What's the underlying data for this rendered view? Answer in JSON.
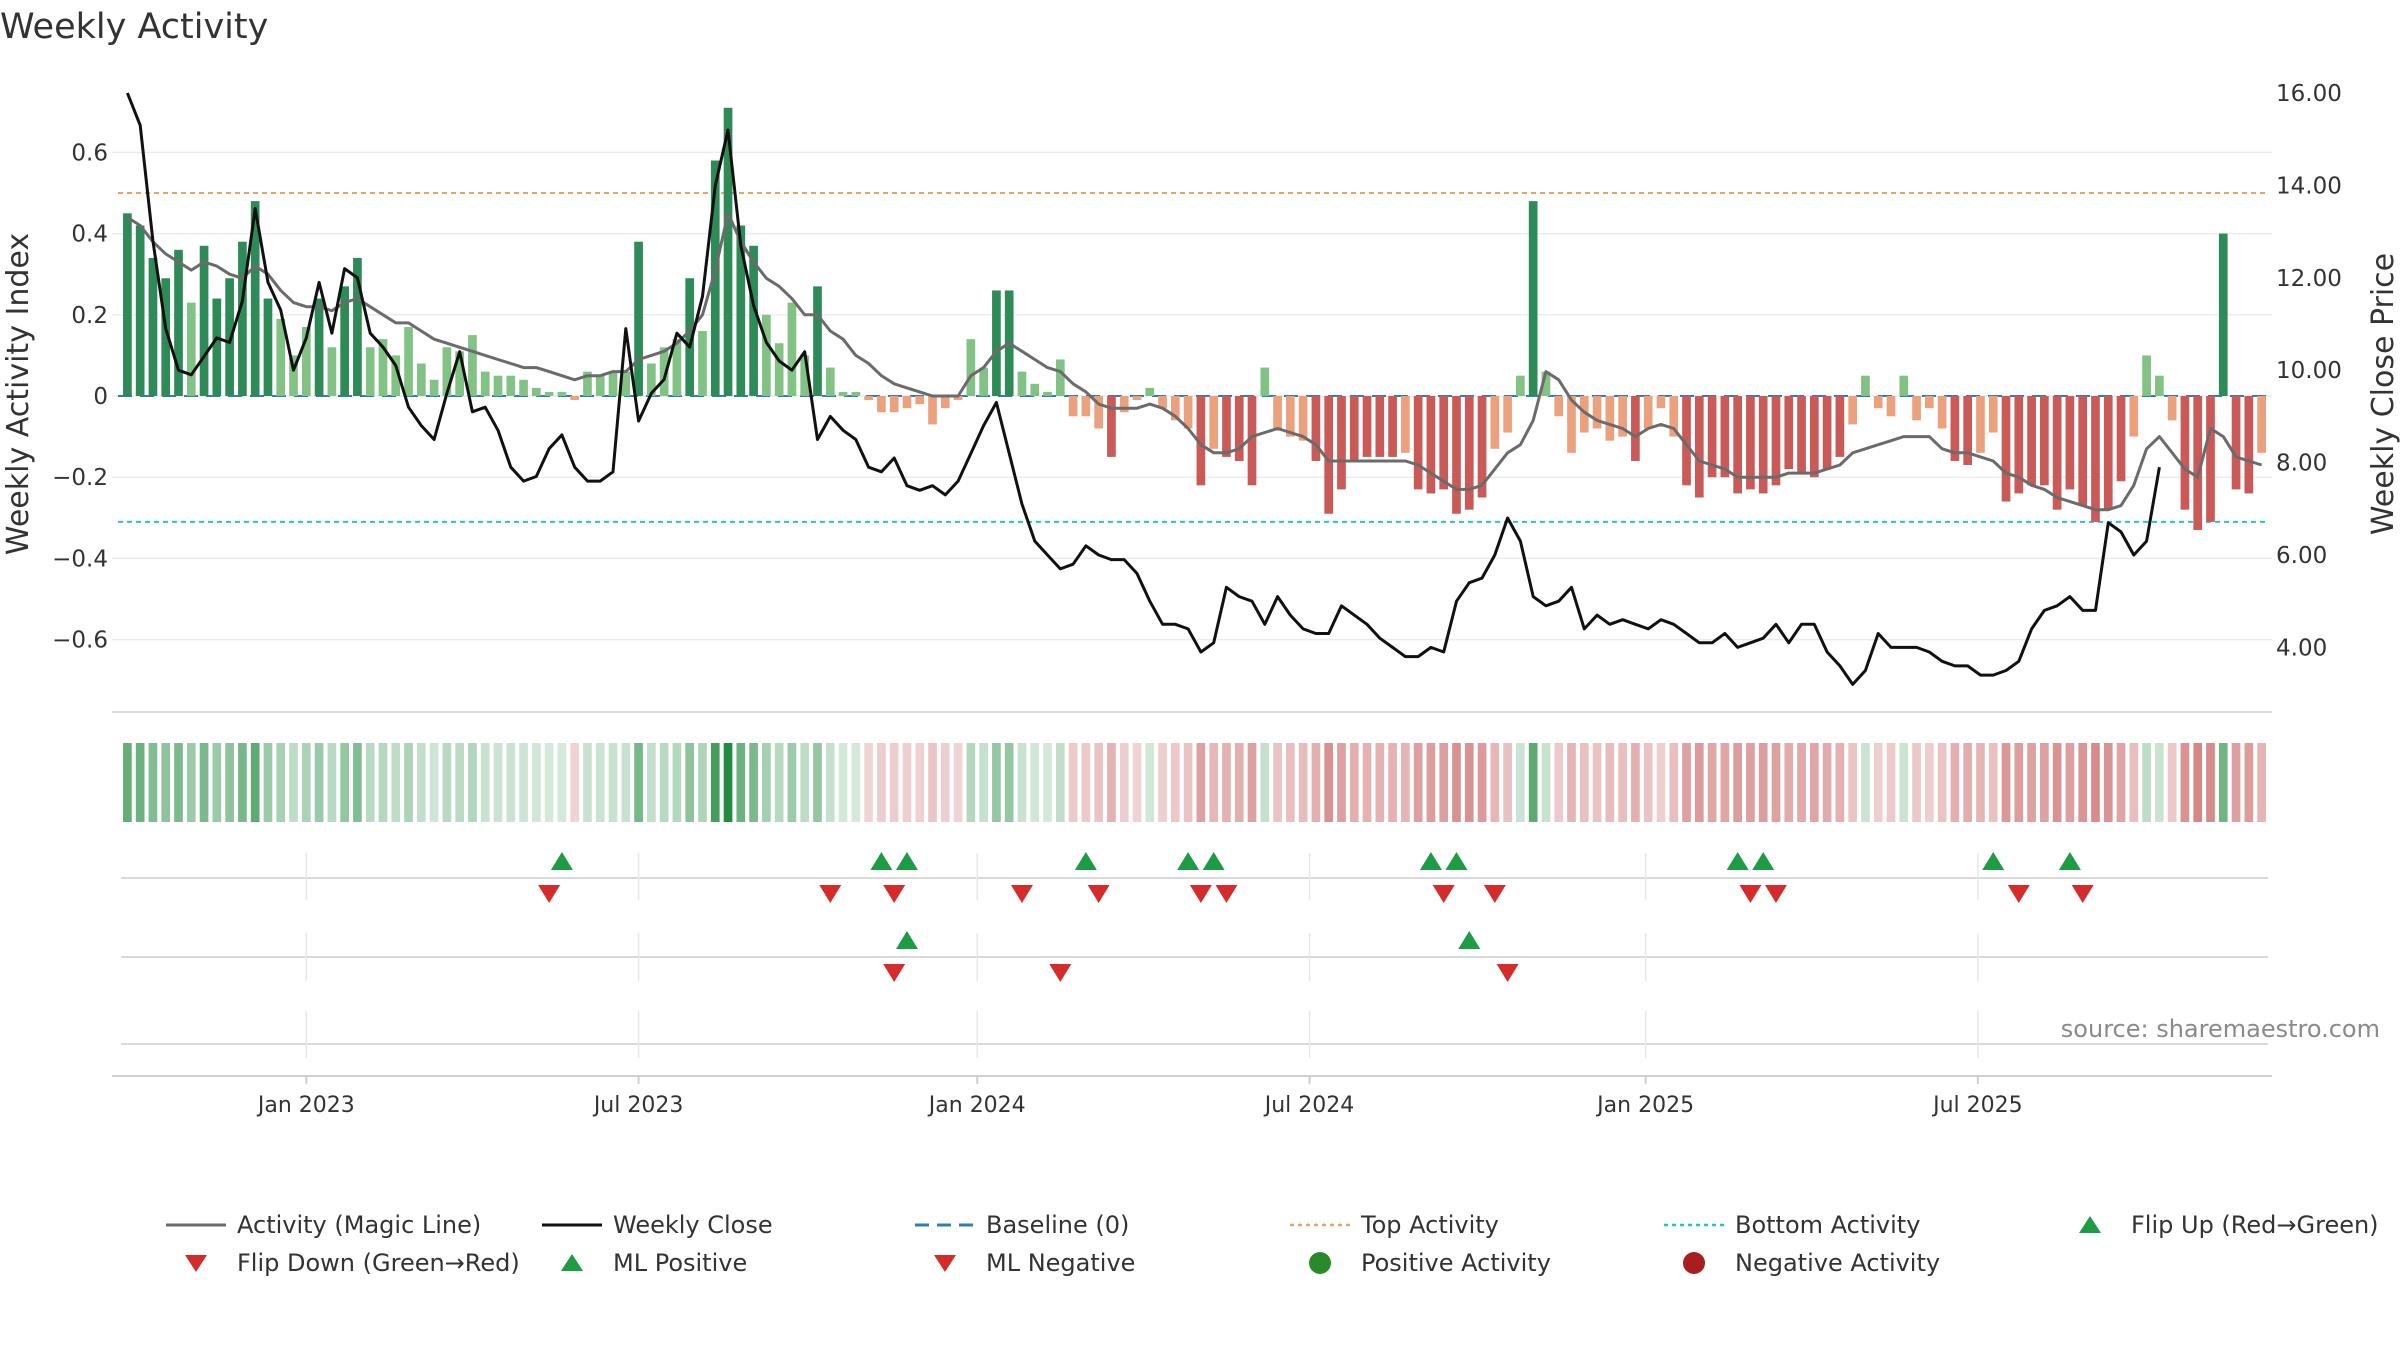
{
  "chart_data": {
    "type": "bar",
    "title": "Weekly Activity",
    "ylabel": "Weekly Activity Index",
    "y2label": "Weekly Close Price",
    "source": "source: sharemaestro.com",
    "ylim": [
      -0.78,
      0.72
    ],
    "y2lim": [
      2.6,
      16.6
    ],
    "y_ticks": [
      {
        "v": 0.6,
        "label": "0.6"
      },
      {
        "v": 0.4,
        "label": "0.4"
      },
      {
        "v": 0.2,
        "label": "0.2"
      },
      {
        "v": 0,
        "label": "0"
      },
      {
        "v": -0.2,
        "label": "−0.2"
      },
      {
        "v": -0.4,
        "label": "−0.4"
      },
      {
        "v": -0.6,
        "label": "−0.6"
      }
    ],
    "y2_ticks": [
      {
        "v": 16,
        "label": "16.00"
      },
      {
        "v": 14,
        "label": "14.00"
      },
      {
        "v": 12,
        "label": "12.00"
      },
      {
        "v": 10,
        "label": "10.00"
      },
      {
        "v": 8,
        "label": "8.00"
      },
      {
        "v": 6,
        "label": "6.00"
      },
      {
        "v": 4,
        "label": "4.00"
      }
    ],
    "x_ticks": [
      {
        "week": 14.5,
        "label": "Jan 2023"
      },
      {
        "week": 40.5,
        "label": "Jul 2023"
      },
      {
        "week": 67,
        "label": "Jan 2024"
      },
      {
        "week": 93,
        "label": "Jul 2024"
      },
      {
        "week": 119.3,
        "label": "Jan 2025"
      },
      {
        "week": 145.3,
        "label": "Jul 2025"
      }
    ],
    "top_activity": 0.5,
    "bottom_activity": -0.31,
    "baseline": 0,
    "activity": [
      0.45,
      0.42,
      0.34,
      0.29,
      0.36,
      0.23,
      0.37,
      0.24,
      0.29,
      0.38,
      0.48,
      0.24,
      0.19,
      0.1,
      0.17,
      0.24,
      0.12,
      0.27,
      0.34,
      0.12,
      0.14,
      0.1,
      0.17,
      0.08,
      0.04,
      0.12,
      0.11,
      0.15,
      0.06,
      0.05,
      0.05,
      0.04,
      0.02,
      0.01,
      0.01,
      -0.01,
      0.06,
      0.05,
      0.06,
      0.06,
      0.38,
      0.08,
      0.12,
      0.14,
      0.29,
      0.16,
      0.58,
      0.71,
      0.42,
      0.37,
      0.2,
      0.13,
      0.23,
      0.1,
      0.27,
      0.07,
      0.01,
      0.01,
      -0.01,
      -0.04,
      -0.04,
      -0.03,
      -0.02,
      -0.07,
      -0.03,
      -0.01,
      0.14,
      0.07,
      0.26,
      0.26,
      0.06,
      0.03,
      0.01,
      0.09,
      -0.05,
      -0.05,
      -0.08,
      -0.15,
      -0.04,
      -0.01,
      0.02,
      -0.03,
      -0.06,
      -0.08,
      -0.22,
      -0.13,
      -0.15,
      -0.16,
      -0.22,
      0.07,
      -0.08,
      -0.1,
      -0.11,
      -0.16,
      -0.29,
      -0.23,
      -0.16,
      -0.15,
      -0.15,
      -0.15,
      -0.14,
      -0.23,
      -0.24,
      -0.23,
      -0.29,
      -0.28,
      -0.25,
      -0.13,
      -0.09,
      0.05,
      0.48,
      0.06,
      -0.05,
      -0.14,
      -0.09,
      -0.08,
      -0.11,
      -0.1,
      -0.16,
      -0.08,
      -0.03,
      -0.1,
      -0.22,
      -0.25,
      -0.2,
      -0.2,
      -0.24,
      -0.23,
      -0.24,
      -0.22,
      -0.18,
      -0.19,
      -0.2,
      -0.18,
      -0.15,
      -0.07,
      0.05,
      -0.03,
      -0.05,
      0.05,
      -0.06,
      -0.03,
      -0.08,
      -0.16,
      -0.17,
      -0.14,
      -0.09,
      -0.26,
      -0.24,
      -0.22,
      -0.22,
      -0.28,
      -0.23,
      -0.27,
      -0.31,
      -0.28,
      -0.21,
      -0.1,
      0.1,
      0.05,
      -0.06,
      -0.28,
      -0.33,
      -0.31,
      0.4,
      -0.23,
      -0.24,
      -0.14
    ],
    "magic_line": [
      0.44,
      0.42,
      0.38,
      0.35,
      0.33,
      0.31,
      0.33,
      0.32,
      0.3,
      0.29,
      0.32,
      0.3,
      0.26,
      0.23,
      0.22,
      0.22,
      0.21,
      0.23,
      0.24,
      0.22,
      0.2,
      0.18,
      0.18,
      0.16,
      0.14,
      0.13,
      0.12,
      0.11,
      0.1,
      0.09,
      0.08,
      0.07,
      0.07,
      0.06,
      0.05,
      0.04,
      0.05,
      0.05,
      0.06,
      0.06,
      0.09,
      0.1,
      0.11,
      0.13,
      0.16,
      0.2,
      0.31,
      0.45,
      0.38,
      0.33,
      0.29,
      0.27,
      0.24,
      0.2,
      0.2,
      0.16,
      0.14,
      0.1,
      0.08,
      0.05,
      0.03,
      0.02,
      0.01,
      0.0,
      0.0,
      0.0,
      0.05,
      0.07,
      0.11,
      0.13,
      0.11,
      0.09,
      0.07,
      0.06,
      0.03,
      0.01,
      -0.02,
      -0.03,
      -0.03,
      -0.03,
      -0.02,
      -0.03,
      -0.05,
      -0.08,
      -0.12,
      -0.14,
      -0.14,
      -0.13,
      -0.1,
      -0.09,
      -0.08,
      -0.09,
      -0.1,
      -0.12,
      -0.16,
      -0.16,
      -0.16,
      -0.16,
      -0.16,
      -0.16,
      -0.16,
      -0.17,
      -0.19,
      -0.21,
      -0.23,
      -0.23,
      -0.22,
      -0.18,
      -0.14,
      -0.12,
      -0.06,
      0.06,
      0.04,
      -0.01,
      -0.04,
      -0.06,
      -0.07,
      -0.08,
      -0.1,
      -0.08,
      -0.07,
      -0.08,
      -0.12,
      -0.16,
      -0.17,
      -0.18,
      -0.2,
      -0.2,
      -0.2,
      -0.2,
      -0.19,
      -0.19,
      -0.19,
      -0.18,
      -0.17,
      -0.14,
      -0.13,
      -0.12,
      -0.11,
      -0.1,
      -0.1,
      -0.1,
      -0.13,
      -0.14,
      -0.14,
      -0.15,
      -0.16,
      -0.19,
      -0.2,
      -0.22,
      -0.23,
      -0.25,
      -0.26,
      -0.27,
      -0.28,
      -0.28,
      -0.27,
      -0.22,
      -0.13,
      -0.1,
      -0.14,
      -0.18,
      -0.2,
      -0.08,
      -0.1,
      -0.15,
      -0.16,
      -0.17
    ],
    "weekly_close": [
      16.0,
      15.3,
      12.8,
      10.9,
      10.0,
      9.9,
      10.3,
      10.7,
      10.6,
      11.5,
      13.5,
      11.9,
      11.3,
      10.0,
      10.7,
      11.9,
      10.8,
      12.2,
      12.0,
      10.8,
      10.5,
      10.1,
      9.2,
      8.8,
      8.5,
      9.5,
      10.4,
      9.1,
      9.2,
      8.7,
      7.9,
      7.6,
      7.7,
      8.3,
      8.6,
      7.9,
      7.6,
      7.6,
      7.8,
      10.9,
      8.9,
      9.5,
      9.8,
      10.8,
      10.5,
      11.6,
      14.0,
      15.2,
      12.7,
      11.4,
      10.6,
      10.2,
      10.0,
      10.4,
      8.5,
      9.0,
      8.7,
      8.5,
      7.9,
      7.8,
      8.1,
      7.5,
      7.4,
      7.5,
      7.3,
      7.6,
      8.2,
      8.8,
      9.3,
      8.2,
      7.1,
      6.3,
      6.0,
      5.7,
      5.8,
      6.2,
      6.0,
      5.9,
      5.9,
      5.6,
      5.0,
      4.5,
      4.5,
      4.4,
      3.9,
      4.1,
      5.3,
      5.1,
      5.0,
      4.5,
      5.1,
      4.7,
      4.4,
      4.3,
      4.3,
      4.9,
      4.7,
      4.5,
      4.2,
      4.0,
      3.8,
      3.8,
      4.0,
      3.9,
      5.0,
      5.4,
      5.5,
      6.0,
      6.8,
      6.3,
      5.1,
      4.9,
      5.0,
      5.3,
      4.4,
      4.7,
      4.5,
      4.6,
      4.5,
      4.4,
      4.6,
      4.5,
      4.3,
      4.1,
      4.1,
      4.3,
      4.0,
      4.1,
      4.2,
      4.5,
      4.1,
      4.5,
      4.5,
      3.9,
      3.6,
      3.2,
      3.5,
      4.3,
      4.0,
      4.0,
      4.0,
      3.9,
      3.7,
      3.6,
      3.6,
      3.4,
      3.4,
      3.5,
      3.7,
      4.4,
      4.8,
      4.9,
      5.1,
      4.8,
      4.8,
      6.7,
      6.5,
      6.0,
      6.3,
      7.9
    ],
    "flip_up": [
      34,
      59,
      61,
      75,
      83,
      85,
      102,
      104,
      126,
      128,
      146,
      152
    ],
    "flip_down": [
      33,
      55,
      60,
      70,
      76,
      84,
      86,
      103,
      107,
      127,
      129,
      148,
      153
    ],
    "ml_positive": [
      61,
      105
    ],
    "ml_negative": [
      60,
      73,
      108
    ],
    "legend": [
      {
        "label": "Activity (Magic Line)",
        "type": "line",
        "color": "#6b6b6b"
      },
      {
        "label": "Weekly Close",
        "type": "line",
        "color": "#111111"
      },
      {
        "label": "Baseline (0)",
        "type": "dash",
        "color": "#2e7fb8"
      },
      {
        "label": "Top Activity",
        "type": "dot",
        "color": "#f0a15e"
      },
      {
        "label": "Bottom Activity",
        "type": "dot",
        "color": "#27c6cf"
      },
      {
        "label": "Flip Up (Red→Green)",
        "type": "tri-up",
        "color": "#1e9b45"
      },
      {
        "label": "Flip Down (Green→Red)",
        "type": "tri-down",
        "color": "#d62b2b"
      },
      {
        "label": "ML Positive",
        "type": "tri-up",
        "color": "#1e9b45"
      },
      {
        "label": "ML Negative",
        "type": "tri-down",
        "color": "#d62b2b"
      },
      {
        "label": "Positive Activity",
        "type": "circle",
        "color": "#2a8a2a"
      },
      {
        "label": "Negative Activity",
        "type": "circle",
        "color": "#a81e1e"
      }
    ]
  }
}
